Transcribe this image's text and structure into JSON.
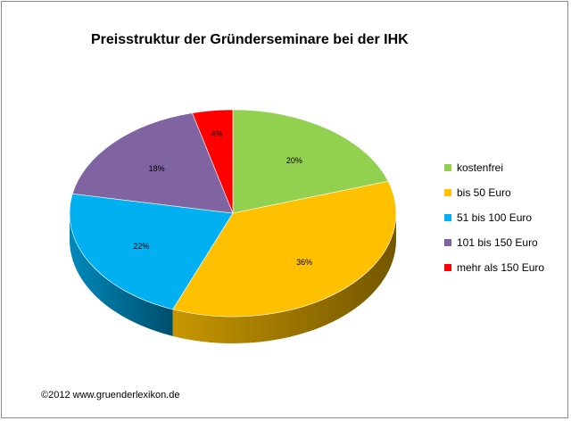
{
  "chart_data": {
    "type": "pie",
    "title": "Preisstruktur der Gründerseminare bei der IHK",
    "categories": [
      "kostenfrei",
      "bis 50 Euro",
      "51 bis 100 Euro",
      "101 bis 150 Euro",
      "mehr als 150 Euro"
    ],
    "values": [
      20,
      36,
      22,
      18,
      4
    ],
    "labels": [
      "20%",
      "36%",
      "22%",
      "18%",
      "4%"
    ],
    "colors": [
      "#92d050",
      "#ffc000",
      "#00b0f0",
      "#8064a2",
      "#ff0000"
    ],
    "style": "3d",
    "legend": "right"
  },
  "footer": "©2012 www.gruenderlexikon.de"
}
